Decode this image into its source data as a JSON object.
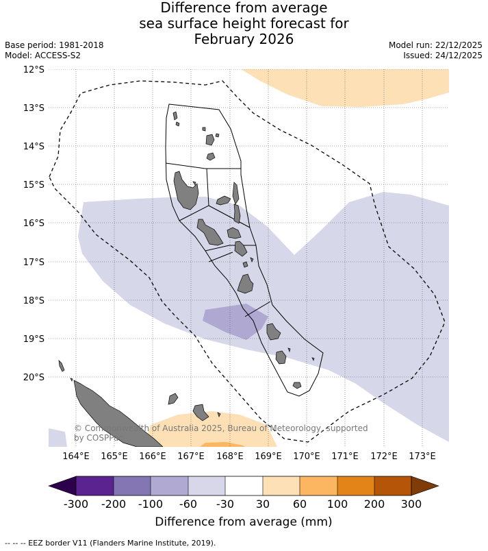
{
  "title": {
    "line1": "Difference from average",
    "line2": "sea surface height forecast for",
    "line3": "February 2026"
  },
  "meta": {
    "base_period": "Base period: 1981-2018",
    "model": "Model: ACCESS-S2",
    "model_run": "Model run: 22/12/2025",
    "issued": "Issued: 24/12/2025"
  },
  "map": {
    "lat_labels": [
      "12°S",
      "13°S",
      "14°S",
      "15°S",
      "16°S",
      "17°S",
      "18°S",
      "19°S",
      "20°S"
    ],
    "lon_labels": [
      "164°E",
      "165°E",
      "166°E",
      "167°E",
      "168°E",
      "169°E",
      "170°E",
      "171°E",
      "172°E",
      "173°E"
    ],
    "credit_line1": "© Commonwealth of Australia 2025, Bureau of Meteorology, supported",
    "credit_line2": "by COSPPac",
    "land_color": "#808080",
    "anomaly_colors": {
      "neg_60_30": "#d7d7ea",
      "neg_100_60": "#afa8d0",
      "pos_30_60": "#fde0b6",
      "pos_60_100": "#fdb660"
    }
  },
  "colorbar": {
    "title": "Difference from average (mm)",
    "ticks": [
      "-300",
      "-200",
      "-100",
      "-60",
      "-30",
      "30",
      "60",
      "100",
      "200",
      "300"
    ],
    "colors": [
      "#5a2390",
      "#8476b2",
      "#b0a9d1",
      "#d8d7ea",
      "#ffffff",
      "#fee0b6",
      "#fcb661",
      "#e38418",
      "#b45508"
    ],
    "under_color": "#2d004b",
    "over_color": "#7f3b08"
  },
  "footnote": "--  --  -- EEZ border V11 (Flanders Marine Institute, 2019)."
}
